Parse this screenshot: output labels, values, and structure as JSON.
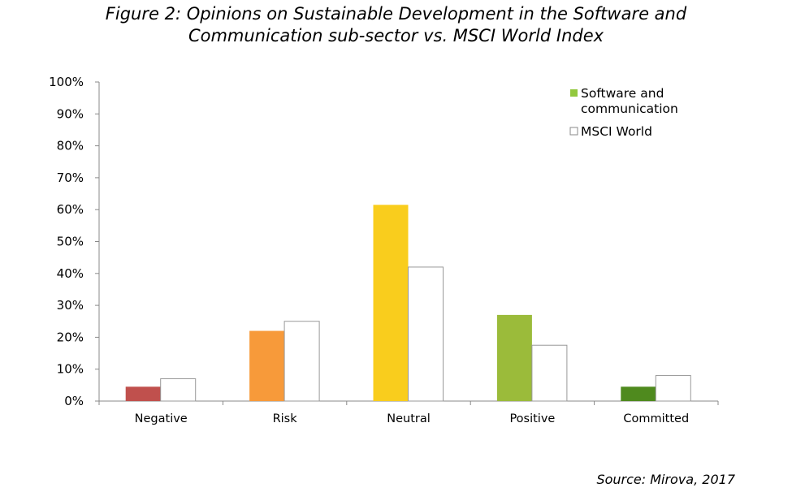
{
  "title_line1": "Figure 2: Opinions on Sustainable Development in the Software and",
  "title_line2": "Communication sub-sector vs. MSCI World Index",
  "source": "Source: Mirova, 2017",
  "chart_data": {
    "type": "bar",
    "categories": [
      "Negative",
      "Risk",
      "Neutral",
      "Positive",
      "Committed"
    ],
    "series": [
      {
        "name": "Software and communication",
        "legend_lines": [
          "Software and",
          "communication"
        ],
        "legend_color": "#92c83e",
        "values": [
          4.5,
          22,
          61.5,
          27,
          4.5
        ],
        "colors": [
          "#c0504d",
          "#f79a3a",
          "#f9cd1d",
          "#9bbb3a",
          "#4f8a1e"
        ]
      },
      {
        "name": "MSCI World",
        "legend_lines": [
          "MSCI World"
        ],
        "legend_color": "#ffffff",
        "values": [
          7,
          25,
          42,
          17.5,
          8
        ],
        "colors": [
          "#ffffff",
          "#ffffff",
          "#ffffff",
          "#ffffff",
          "#ffffff"
        ]
      }
    ],
    "yticks": [
      "0%",
      "10%",
      "20%",
      "30%",
      "40%",
      "50%",
      "60%",
      "70%",
      "80%",
      "90%",
      "100%"
    ],
    "ylim": [
      0,
      100
    ],
    "legend_position": "top-right",
    "grid": false
  }
}
